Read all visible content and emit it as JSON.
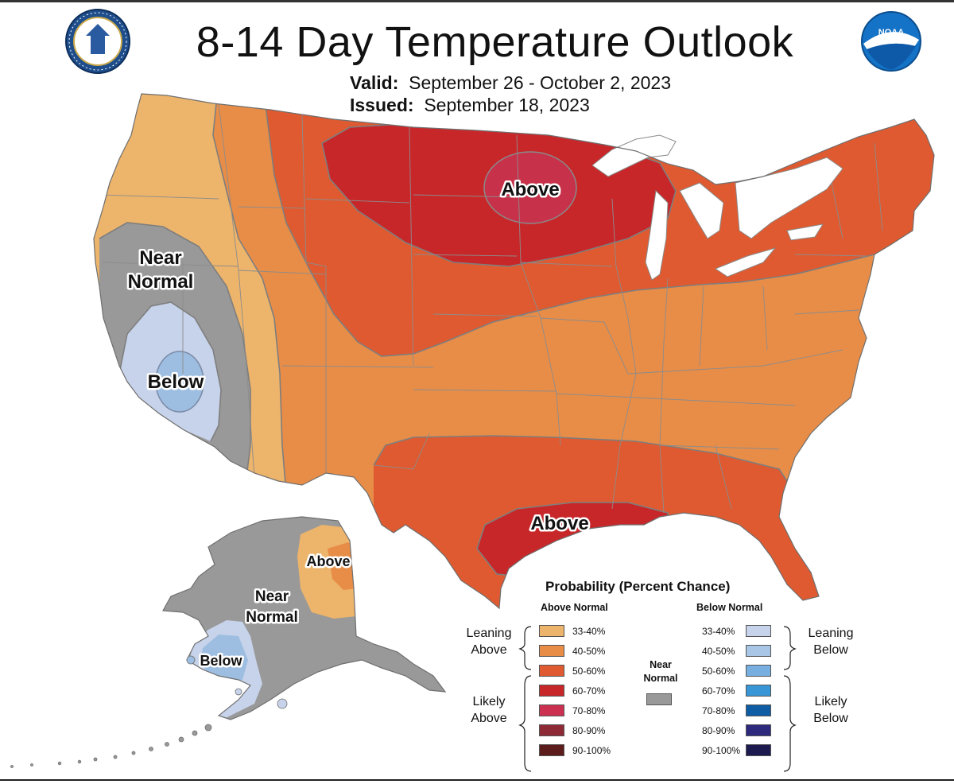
{
  "title": "8-14 Day Temperature Outlook",
  "valid": {
    "label": "Valid:",
    "value": "September 26 - October 2, 2023"
  },
  "issued": {
    "label": "Issued:",
    "value": "September 18, 2023"
  },
  "logos": {
    "left": "department-of-commerce-seal",
    "right": "noaa-logo",
    "noaa_text": "NOAA"
  },
  "map": {
    "labels": {
      "conus_above_north": "Above",
      "conus_above_south": "Above",
      "conus_near_normal": [
        "Near",
        "Normal"
      ],
      "conus_below": "Below",
      "alaska_above": "Above",
      "alaska_near_normal": [
        "Near",
        "Normal"
      ],
      "alaska_below": "Below"
    },
    "colors": {
      "above_33_40": "#EDB46B",
      "above_40_50": "#E88D47",
      "above_50_60": "#DF5A30",
      "above_60_70": "#C8272A",
      "above_70_80": "#C7324A",
      "near_normal": "#999999",
      "below_33_40": "#C7D3EA",
      "below_40_50": "#9DBEE1",
      "great_lakes": "#FFFFFF",
      "borders": "#7A7A7A"
    }
  },
  "legend": {
    "title": "Probability (Percent Chance)",
    "above_header": "Above Normal",
    "below_header": "Below Normal",
    "near_normal_label": [
      "Near",
      "Normal"
    ],
    "leaning_above": [
      "Leaning",
      "Above"
    ],
    "likely_above": [
      "Likely",
      "Above"
    ],
    "leaning_below": [
      "Leaning",
      "Below"
    ],
    "likely_below": [
      "Likely",
      "Below"
    ],
    "above": [
      {
        "range": "33-40%",
        "color": "#EDB46B"
      },
      {
        "range": "40-50%",
        "color": "#E88D47"
      },
      {
        "range": "50-60%",
        "color": "#DF5A30"
      },
      {
        "range": "60-70%",
        "color": "#C8272A"
      },
      {
        "range": "70-80%",
        "color": "#CC3050"
      },
      {
        "range": "80-90%",
        "color": "#8E2A36"
      },
      {
        "range": "90-100%",
        "color": "#5C1C1C"
      }
    ],
    "below": [
      {
        "range": "33-40%",
        "color": "#C7D3EA"
      },
      {
        "range": "40-50%",
        "color": "#A9C6E6"
      },
      {
        "range": "50-60%",
        "color": "#77B0E0"
      },
      {
        "range": "60-70%",
        "color": "#3996D6"
      },
      {
        "range": "70-80%",
        "color": "#0E5CA4"
      },
      {
        "range": "80-90%",
        "color": "#2D2A7E"
      },
      {
        "range": "90-100%",
        "color": "#1C1A4E"
      }
    ],
    "near_normal_color": "#999999"
  }
}
